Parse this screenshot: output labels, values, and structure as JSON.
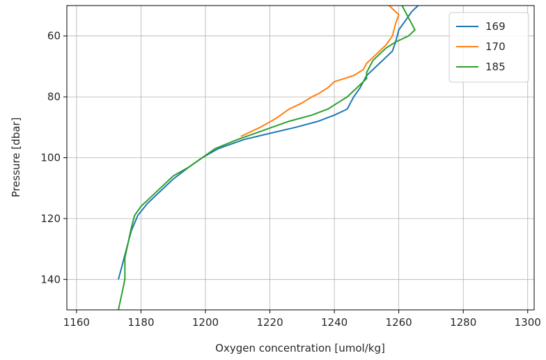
{
  "chart_data": {
    "type": "line",
    "title": "",
    "xlabel": "Oxygen concentration [umol/kg]",
    "ylabel": "Pressure [dbar]",
    "xlim": [
      1157,
      1302
    ],
    "ylim": [
      150,
      50
    ],
    "y_inverted": true,
    "grid": true,
    "legend_position": "top-right",
    "xticks": [
      1160,
      1180,
      1200,
      1220,
      1240,
      1260,
      1280,
      1300
    ],
    "yticks": [
      60,
      80,
      100,
      120,
      140
    ],
    "series": [
      {
        "name": "169",
        "color": "#1f77b4",
        "x": [
          1266,
          1264,
          1262,
          1260,
          1259,
          1258,
          1256,
          1254,
          1252,
          1250,
          1249,
          1248,
          1246,
          1245,
          1244,
          1240,
          1235,
          1228,
          1220,
          1212,
          1204,
          1199,
          1195,
          1190,
          1186,
          1182,
          1179,
          1177,
          1176,
          1175,
          1174,
          1173
        ],
        "y": [
          50,
          52,
          55,
          58,
          62,
          65,
          67,
          69,
          71,
          73,
          75,
          77,
          80,
          82,
          84,
          86,
          88,
          90,
          92,
          94,
          97,
          100,
          103,
          107,
          111,
          115,
          119,
          124,
          128,
          132,
          136,
          140
        ]
      },
      {
        "name": "170",
        "color": "#ff7f0e",
        "x": [
          1257,
          1260,
          1259,
          1258,
          1256,
          1254,
          1252,
          1250,
          1249,
          1246,
          1243,
          1240,
          1238,
          1235,
          1233,
          1230,
          1226,
          1222,
          1217,
          1211
        ],
        "y": [
          50,
          53,
          56,
          60,
          63,
          65,
          67,
          69,
          71,
          73,
          74,
          75,
          77,
          79,
          80,
          82,
          84,
          87,
          90,
          93
        ]
      },
      {
        "name": "185",
        "color": "#2ca02c",
        "x": [
          1261,
          1262,
          1263,
          1264,
          1265,
          1263,
          1259,
          1256,
          1254,
          1252,
          1251,
          1250,
          1250,
          1248,
          1246,
          1244,
          1241,
          1238,
          1233,
          1226,
          1218,
          1210,
          1203,
          1199,
          1195,
          1190,
          1186,
          1183,
          1180,
          1178,
          1177,
          1176,
          1175,
          1175,
          1174,
          1173
        ],
        "y": [
          50,
          52,
          54,
          56,
          58,
          60,
          62,
          64,
          66,
          68,
          70,
          72,
          74,
          76,
          78,
          80,
          82,
          84,
          86,
          88,
          91,
          94,
          97,
          100,
          103,
          106,
          110,
          113,
          116,
          119,
          123,
          128,
          133,
          140,
          145,
          150
        ]
      }
    ]
  }
}
